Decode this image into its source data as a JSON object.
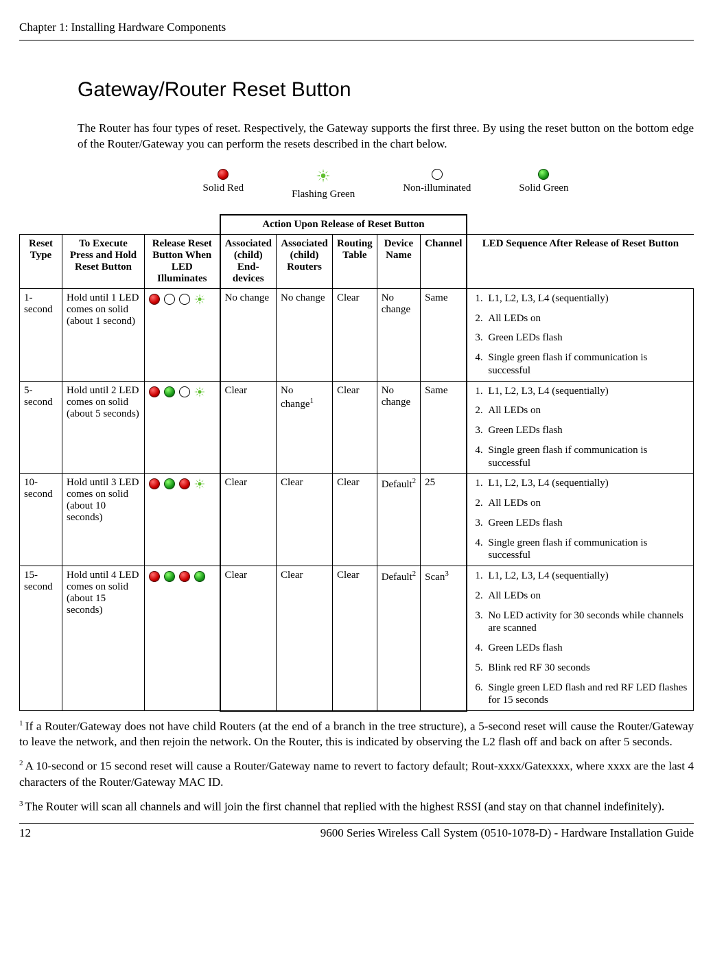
{
  "running_head": "Chapter 1: Installing Hardware Components",
  "section_title": "Gateway/Router Reset Button",
  "intro": "The Router has four types of reset. Respectively, the Gateway supports the first three. By using the reset button on the bottom edge of the Router/Gateway you can perform the resets described in the chart below.",
  "legend": {
    "solid_red": "Solid Red",
    "flashing_green": "Flashing Green",
    "non_illuminated": "Non-illuminated",
    "solid_green": "Solid Green"
  },
  "colors": {
    "led_red_main": "#cc0000",
    "led_green_main": "#1a9a1a",
    "flash_green": "#5fbf2e",
    "background": "#ffffff",
    "text": "#000000",
    "border": "#000000"
  },
  "table": {
    "action_header": "Action Upon Release of Reset Button",
    "headers": {
      "reset_type": "Reset Type",
      "to_execute": "To Execute Press and Hold Reset Button",
      "release_reset": "Release Reset Button When LED Illuminates",
      "assoc_end": "Associated (child) End-devices",
      "assoc_routers": "Associated (child) Routers",
      "routing_table": "Routing Table",
      "device_name": "Device Name",
      "channel": "Channel",
      "led_sequence": "LED Sequence After Release of Reset Button"
    },
    "rows": [
      {
        "reset_type": "1-second",
        "to_execute": "Hold until 1 LED comes on solid (about 1 second)",
        "leds": [
          "red",
          "off",
          "off",
          "flash"
        ],
        "assoc_end": "No change",
        "assoc_routers": "No change",
        "routing_table": "Clear",
        "device_name": "No change",
        "device_name_sup": "",
        "channel": "Same",
        "channel_sup": "",
        "seq": [
          "L1, L2, L3, L4 (sequentially)",
          "All LEDs on",
          "Green LEDs flash",
          "Single green flash if communication is successful"
        ]
      },
      {
        "reset_type": "5-second",
        "to_execute": "Hold until 2 LED comes on solid (about 5 seconds)",
        "leds": [
          "red",
          "green",
          "off",
          "flash"
        ],
        "assoc_end": "Clear",
        "assoc_routers": "No change",
        "assoc_routers_sup": "1",
        "routing_table": "Clear",
        "device_name": "No change",
        "device_name_sup": "",
        "channel": "Same",
        "channel_sup": "",
        "seq": [
          "L1, L2, L3, L4 (sequentially)",
          "All LEDs on",
          "Green LEDs flash",
          "Single green flash if communication is successful"
        ]
      },
      {
        "reset_type": "10-second",
        "to_execute": "Hold until 3 LED comes on solid (about 10 seconds)",
        "leds": [
          "red",
          "green",
          "red",
          "flash"
        ],
        "assoc_end": "Clear",
        "assoc_routers": "Clear",
        "routing_table": "Clear",
        "device_name": "Default",
        "device_name_sup": "2",
        "channel": "25",
        "channel_sup": "",
        "seq": [
          "L1, L2, L3, L4 (sequentially)",
          "All LEDs on",
          "Green LEDs flash",
          "Single green flash if communication is successful"
        ]
      },
      {
        "reset_type": "15-second",
        "to_execute": "Hold until 4 LED comes on solid (about 15 seconds)",
        "leds": [
          "red",
          "green",
          "red",
          "green"
        ],
        "assoc_end": "Clear",
        "assoc_routers": "Clear",
        "routing_table": "Clear",
        "device_name": "Default",
        "device_name_sup": "2",
        "channel": "Scan",
        "channel_sup": "3",
        "seq": [
          "L1, L2, L3, L4 (sequentially)",
          "All LEDs on",
          "No LED activity for 30 seconds while channels are scanned",
          "Green LEDs flash",
          "Blink red RF 30 seconds",
          "Single green LED flash and red RF LED flashes for 15 seconds"
        ]
      }
    ]
  },
  "footnotes": {
    "f1": "If a Router/Gateway does not have child Routers (at the end of a branch in the tree structure), a 5-second reset will cause the Router/Gateway to leave the network, and then rejoin the network. On the Router, this is indicated by observing the L2 flash off and back on after 5 seconds.",
    "f2": "A 10-second or 15 second reset will cause a Router/Gateway name to revert to factory default; Rout-xxxx/Gatexxxx, where xxxx are the last 4 characters of the Router/Gateway MAC ID.",
    "f3": "The Router will scan all channels and will join the first channel that replied with the highest RSSI (and stay on that channel indefinitely)."
  },
  "footer": {
    "page_number": "12",
    "doc_title": "9600 Series Wireless Call System (0510-1078-D) - Hardware Installation Guide"
  }
}
